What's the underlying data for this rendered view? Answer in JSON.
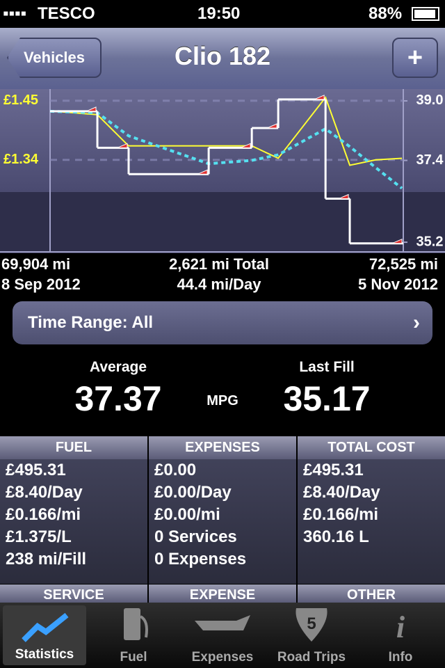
{
  "status_bar": {
    "carrier": "TESCO",
    "time": "19:50",
    "battery": "88%"
  },
  "nav": {
    "back": "Vehicles",
    "title": "Clio 182",
    "add": "+"
  },
  "chart": {
    "type": "line",
    "xlim": [
      69904,
      72525
    ],
    "ylim": [
      34.94,
      39.28
    ],
    "yticks": [
      {
        "value": 35.2,
        "label": "35.2"
      },
      {
        "value": 37.4,
        "label": "37.4"
      },
      {
        "value": 39,
        "label": "39.0"
      }
    ],
    "y2lim": [
      1.169,
      1.469
    ],
    "y2ticks": [
      {
        "value": 1.34,
        "label": "£1.34"
      },
      {
        "value": 1.45,
        "label": "£1.45"
      }
    ],
    "step_series": {
      "color": "#ffffff",
      "x": [
        70255,
        70487,
        71081,
        71401,
        71597,
        71948,
        72128,
        72525
      ],
      "values": [
        38.72,
        37.74,
        37.03,
        37.74,
        38.27,
        39.04,
        36.37,
        35.17
      ]
    },
    "x": [
      69904,
      70255,
      70487,
      71081,
      71401,
      71597,
      71948,
      72128,
      72319,
      72515
    ],
    "series": [
      {
        "color": "#ffff33",
        "axis": "y2",
        "values": [
          1.431,
          1.424,
          1.366,
          1.366,
          1.366,
          1.343,
          1.456,
          1.33,
          1.34,
          1.343
        ]
      },
      {
        "color": "#55e0f0",
        "dashed": true,
        "values": [
          38.72,
          38.68,
          38.06,
          37.31,
          37.4,
          37.55,
          38.25,
          37.77,
          37.21,
          36.65
        ]
      }
    ]
  },
  "range": {
    "start_distance": "69,904 mi",
    "start_date": "8 Sep 2012",
    "total": "2,621 mi Total",
    "rate": "44.4 mi/Day",
    "end_distance": "72,525 mi",
    "end_date": "5 Nov 2012"
  },
  "time_range": "Time Range: All",
  "summary": {
    "average_label": "Average",
    "average": "37.37",
    "unit": "MPG",
    "last_label": "Last Fill",
    "last": "35.17"
  },
  "panels": [
    {
      "title": "FUEL",
      "lines": [
        "£495.31",
        "£8.40/Day",
        "£0.166/mi",
        "£1.375/L",
        "238 mi/Fill"
      ]
    },
    {
      "title": "EXPENSES",
      "lines": [
        "£0.00",
        "£0.00/Day",
        "£0.00/mi",
        "0 Services",
        "0 Expenses"
      ]
    },
    {
      "title": "TOTAL COST",
      "lines": [
        "£495.31",
        "£8.40/Day",
        "£0.166/mi",
        "360.16 L"
      ]
    }
  ],
  "lower_headers": [
    "SERVICE",
    "EXPENSE",
    "OTHER"
  ],
  "tabs": [
    "Statistics",
    "Fuel",
    "Expenses",
    "Road Trips",
    "Info"
  ]
}
